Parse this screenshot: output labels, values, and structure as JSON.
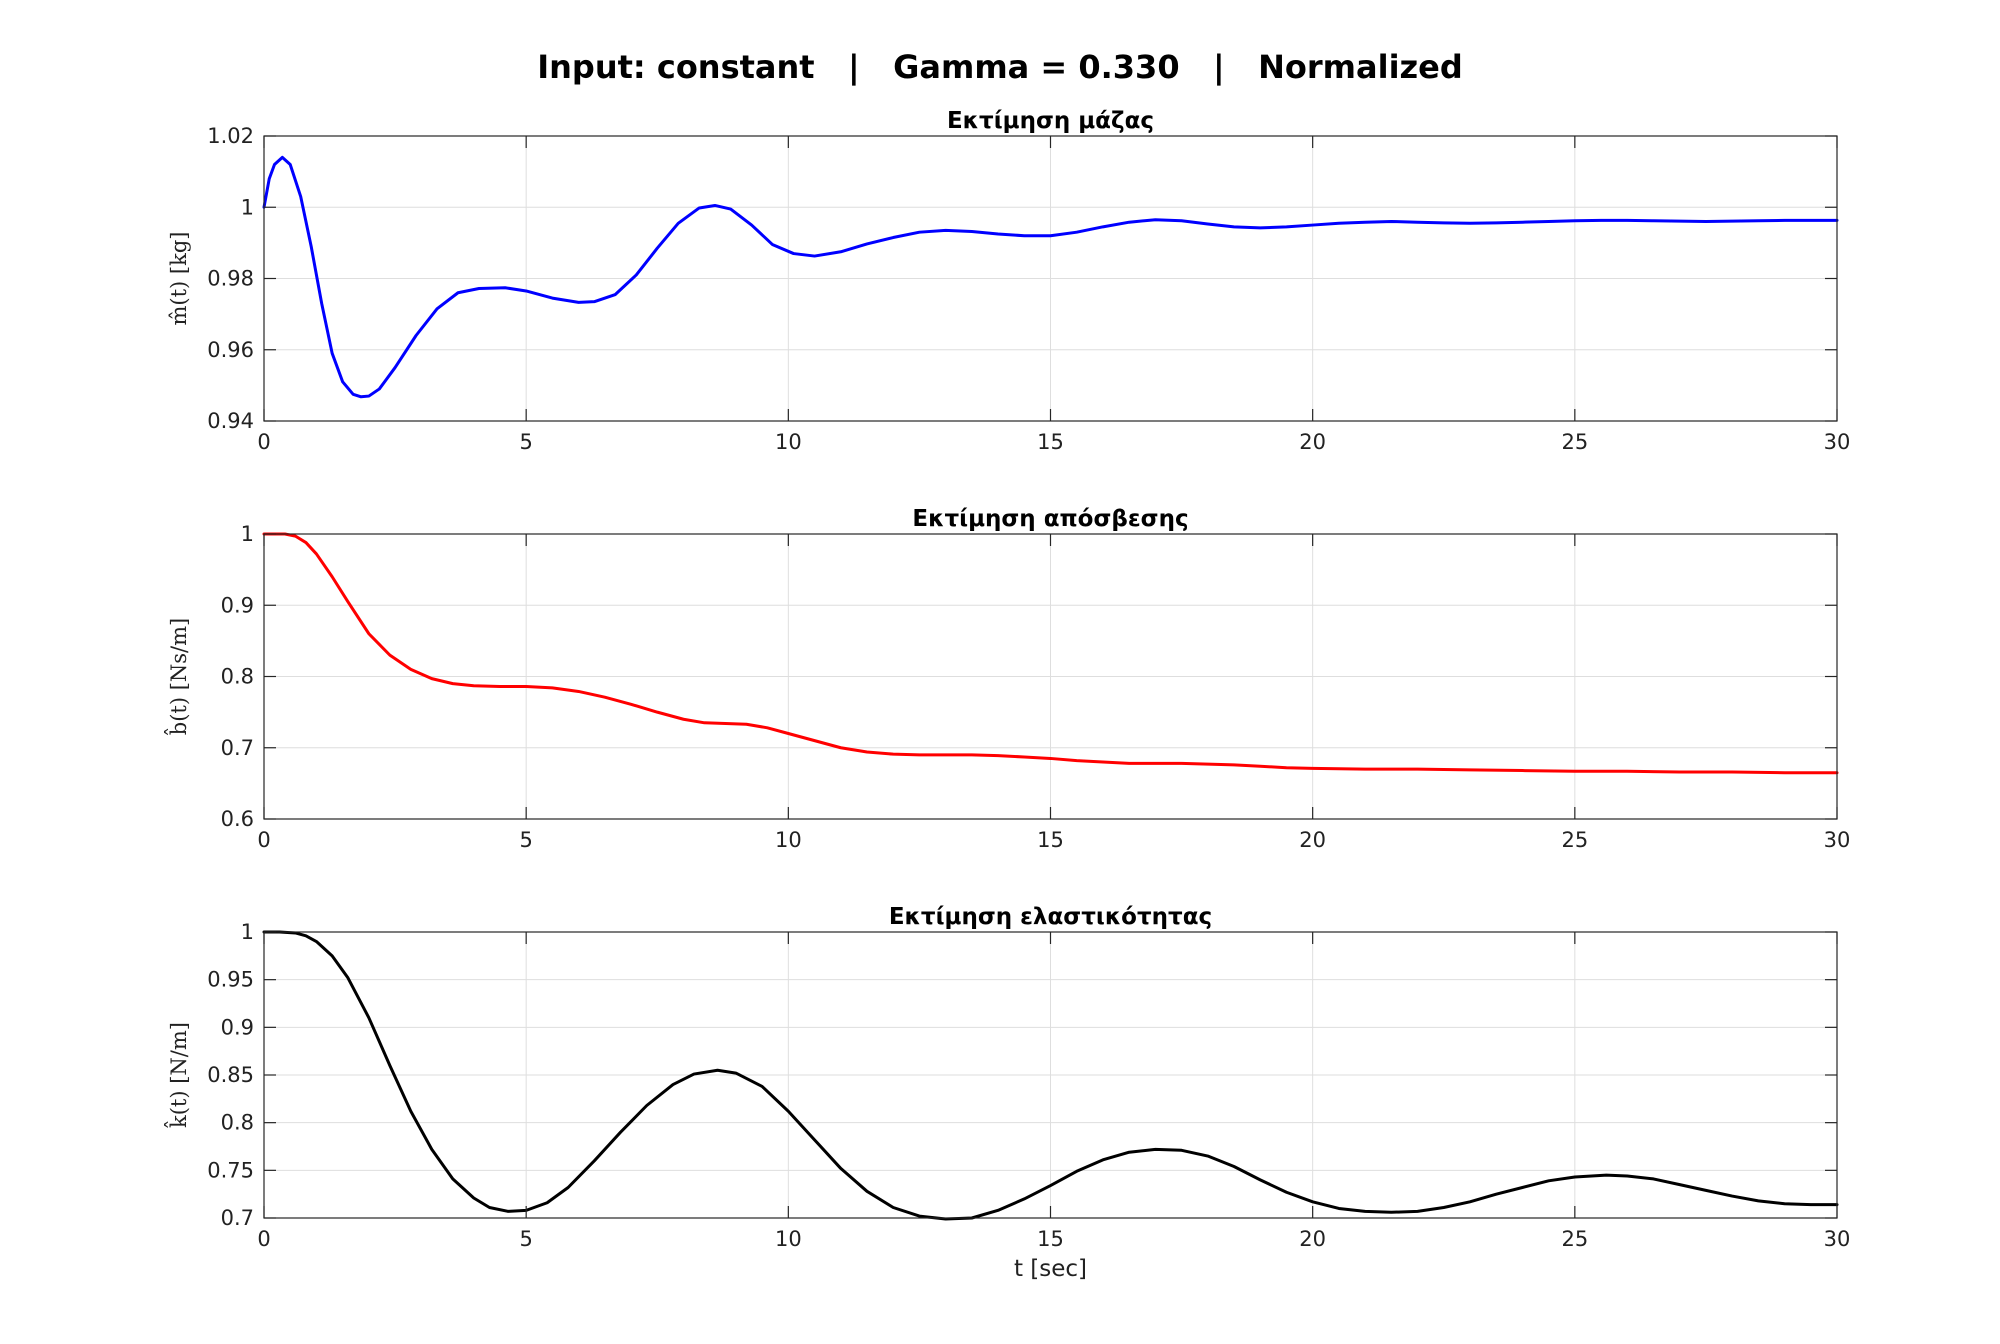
{
  "suptitle": "Input: constant   |   Gamma = 0.330   |   Normalized",
  "chart_data": [
    {
      "type": "line",
      "title": "Εκτίμηση μάζας",
      "ylabel": "m̂(t)  [kg]",
      "xlabel": "",
      "xlim": [
        0,
        30
      ],
      "ylim": [
        0.94,
        1.02
      ],
      "xticks": [
        0,
        5,
        10,
        15,
        20,
        25,
        30
      ],
      "yticks": [
        0.94,
        0.96,
        0.98,
        1.0,
        1.02
      ],
      "ytick_labels": [
        "0.94",
        "0.96",
        "0.98",
        "1",
        "1.02"
      ],
      "grid": true,
      "series": [
        {
          "color": "#0000ff",
          "x": [
            0,
            0.1,
            0.2,
            0.35,
            0.5,
            0.7,
            0.9,
            1.1,
            1.3,
            1.5,
            1.7,
            1.85,
            2.0,
            2.2,
            2.5,
            2.9,
            3.3,
            3.7,
            4.1,
            4.6,
            5.0,
            5.5,
            6.0,
            6.3,
            6.7,
            7.1,
            7.5,
            7.9,
            8.3,
            8.6,
            8.9,
            9.3,
            9.7,
            10.1,
            10.5,
            11.0,
            11.5,
            12.0,
            12.5,
            13.0,
            13.5,
            14.0,
            14.5,
            15.0,
            15.5,
            16.0,
            16.5,
            17.0,
            17.5,
            18.0,
            18.5,
            19.0,
            19.5,
            20.0,
            20.5,
            21.0,
            21.5,
            22.0,
            22.5,
            23.0,
            23.5,
            24.0,
            24.5,
            25.0,
            25.5,
            26.0,
            26.5,
            27.0,
            27.5,
            28.0,
            28.5,
            29.0,
            29.5,
            30.0
          ],
          "y": [
            1.0,
            1.008,
            1.012,
            1.014,
            1.012,
            1.003,
            0.989,
            0.973,
            0.959,
            0.951,
            0.9475,
            0.9468,
            0.947,
            0.949,
            0.955,
            0.964,
            0.9715,
            0.976,
            0.9772,
            0.9774,
            0.9765,
            0.9745,
            0.9733,
            0.9735,
            0.9755,
            0.981,
            0.9885,
            0.9955,
            0.9998,
            1.0005,
            0.9995,
            0.995,
            0.9895,
            0.987,
            0.9863,
            0.9875,
            0.9897,
            0.9915,
            0.993,
            0.9935,
            0.9932,
            0.9925,
            0.992,
            0.992,
            0.993,
            0.9945,
            0.9958,
            0.9965,
            0.9962,
            0.9953,
            0.9945,
            0.9942,
            0.9945,
            0.995,
            0.9955,
            0.9958,
            0.996,
            0.9958,
            0.9956,
            0.9955,
            0.9956,
            0.9958,
            0.996,
            0.9962,
            0.9963,
            0.9963,
            0.9962,
            0.9961,
            0.996,
            0.9961,
            0.9962,
            0.9963,
            0.9963,
            0.9963
          ]
        }
      ]
    },
    {
      "type": "line",
      "title": "Εκτίμηση απόσβεσης",
      "ylabel": "b̂(t)  [Ns/m]",
      "xlabel": "",
      "xlim": [
        0,
        30
      ],
      "ylim": [
        0.6,
        1.0
      ],
      "xticks": [
        0,
        5,
        10,
        15,
        20,
        25,
        30
      ],
      "yticks": [
        0.6,
        0.7,
        0.8,
        0.9,
        1.0
      ],
      "ytick_labels": [
        "0.6",
        "0.7",
        "0.8",
        "0.9",
        "1"
      ],
      "grid": true,
      "series": [
        {
          "color": "#ff0000",
          "x": [
            0,
            0.2,
            0.4,
            0.6,
            0.8,
            1.0,
            1.3,
            1.6,
            2.0,
            2.4,
            2.8,
            3.2,
            3.6,
            4.0,
            4.5,
            5.0,
            5.5,
            6.0,
            6.5,
            7.0,
            7.5,
            8.0,
            8.4,
            8.8,
            9.2,
            9.6,
            10.0,
            10.5,
            11.0,
            11.5,
            12.0,
            12.5,
            13.0,
            13.5,
            14.0,
            14.5,
            15.0,
            15.5,
            16.0,
            16.5,
            17.0,
            17.5,
            18.0,
            18.5,
            19.0,
            19.5,
            20.0,
            21.0,
            22.0,
            23.0,
            24.0,
            25.0,
            26.0,
            27.0,
            28.0,
            29.0,
            30.0
          ],
          "y": [
            1.0,
            1.0,
            1.0,
            0.997,
            0.988,
            0.972,
            0.94,
            0.905,
            0.86,
            0.83,
            0.81,
            0.797,
            0.79,
            0.787,
            0.786,
            0.786,
            0.784,
            0.779,
            0.771,
            0.761,
            0.75,
            0.74,
            0.735,
            0.734,
            0.733,
            0.728,
            0.72,
            0.71,
            0.7,
            0.694,
            0.691,
            0.69,
            0.69,
            0.69,
            0.689,
            0.687,
            0.685,
            0.682,
            0.68,
            0.678,
            0.678,
            0.678,
            0.677,
            0.676,
            0.674,
            0.672,
            0.671,
            0.67,
            0.67,
            0.669,
            0.668,
            0.667,
            0.667,
            0.666,
            0.666,
            0.665,
            0.665
          ]
        }
      ]
    },
    {
      "type": "line",
      "title": "Εκτίμηση ελαστικότητας",
      "ylabel": "k̂(t)  [N/m]",
      "xlabel": "t [sec]",
      "xlim": [
        0,
        30
      ],
      "ylim": [
        0.7,
        1.0
      ],
      "xticks": [
        0,
        5,
        10,
        15,
        20,
        25,
        30
      ],
      "yticks": [
        0.7,
        0.75,
        0.8,
        0.85,
        0.9,
        0.95,
        1.0
      ],
      "ytick_labels": [
        "0.7",
        "0.75",
        "0.8",
        "0.85",
        "0.9",
        "0.95",
        "1"
      ],
      "grid": true,
      "series": [
        {
          "color": "#000000",
          "x": [
            0,
            0.3,
            0.6,
            0.8,
            1.0,
            1.3,
            1.6,
            2.0,
            2.4,
            2.8,
            3.2,
            3.6,
            4.0,
            4.3,
            4.65,
            5.0,
            5.4,
            5.8,
            6.3,
            6.8,
            7.3,
            7.8,
            8.2,
            8.65,
            9.0,
            9.5,
            10.0,
            10.5,
            11.0,
            11.5,
            12.0,
            12.5,
            13.0,
            13.5,
            14.0,
            14.5,
            15.0,
            15.5,
            16.0,
            16.5,
            17.0,
            17.5,
            18.0,
            18.5,
            19.0,
            19.5,
            20.0,
            20.5,
            21.0,
            21.5,
            22.0,
            22.5,
            23.0,
            23.5,
            24.0,
            24.5,
            25.0,
            25.6,
            26.0,
            26.5,
            27.0,
            27.5,
            28.0,
            28.5,
            29.0,
            29.5,
            30.0
          ],
          "y": [
            1.0,
            1.0,
            0.999,
            0.996,
            0.99,
            0.975,
            0.952,
            0.91,
            0.86,
            0.812,
            0.772,
            0.741,
            0.721,
            0.711,
            0.707,
            0.708,
            0.716,
            0.732,
            0.76,
            0.79,
            0.818,
            0.84,
            0.851,
            0.855,
            0.852,
            0.838,
            0.812,
            0.782,
            0.752,
            0.728,
            0.711,
            0.702,
            0.699,
            0.7,
            0.708,
            0.72,
            0.734,
            0.749,
            0.761,
            0.769,
            0.772,
            0.771,
            0.765,
            0.754,
            0.74,
            0.727,
            0.717,
            0.71,
            0.707,
            0.706,
            0.707,
            0.711,
            0.717,
            0.725,
            0.732,
            0.739,
            0.743,
            0.745,
            0.744,
            0.741,
            0.735,
            0.729,
            0.723,
            0.718,
            0.715,
            0.714,
            0.714
          ]
        }
      ]
    }
  ]
}
